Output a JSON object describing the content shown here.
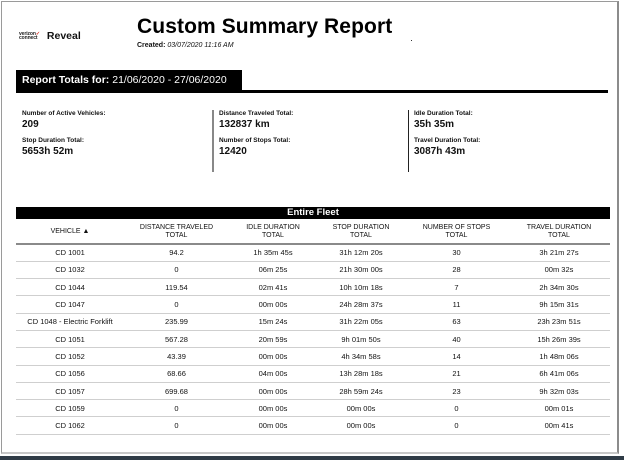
{
  "logo": {
    "brand_line1": "verizon",
    "brand_line2": "connect",
    "product": "Reveal"
  },
  "report": {
    "title": "Custom Summary Report",
    "created_label": "Created:",
    "created_value": "03/07/2020 11:16 AM"
  },
  "totals": {
    "header_label": "Report Totals for:",
    "date_range": "21/06/2020 - 27/06/2020",
    "stats": [
      {
        "label": "Number of Active Vehicles:",
        "value": "209"
      },
      {
        "label": "Stop Duration Total:",
        "value": "5653h 52m"
      },
      {
        "label": "Distance Traveled Total:",
        "value": "132837 km"
      },
      {
        "label": "Number of Stops Total:",
        "value": "12420"
      },
      {
        "label": "Idle Duration Total:",
        "value": "35h 35m"
      },
      {
        "label": "Travel Duration Total:",
        "value": "3087h 43m"
      }
    ]
  },
  "fleet": {
    "title": "Entire Fleet",
    "columns": [
      {
        "line1": "VEHICLE",
        "sort": "▲"
      },
      {
        "line1": "DISTANCE TRAVELED",
        "line2": "TOTAL"
      },
      {
        "line1": "IDLE DURATION",
        "line2": "TOTAL"
      },
      {
        "line1": "STOP DURATION",
        "line2": "TOTAL"
      },
      {
        "line1": "NUMBER OF STOPS",
        "line2": "TOTAL"
      },
      {
        "line1": "TRAVEL DURATION",
        "line2": "TOTAL"
      }
    ],
    "rows": [
      [
        "CD 1001",
        "94.2",
        "1h 35m 45s",
        "31h 12m 20s",
        "30",
        "3h 21m 27s"
      ],
      [
        "CD 1032",
        "0",
        "06m 25s",
        "21h 30m 00s",
        "28",
        "00m 32s"
      ],
      [
        "CD 1044",
        "119.54",
        "02m 41s",
        "10h 10m 18s",
        "7",
        "2h 34m 30s"
      ],
      [
        "CD 1047",
        "0",
        "00m 00s",
        "24h 28m 37s",
        "11",
        "9h 15m 31s"
      ],
      [
        "CD 1048 - Electric Forklift",
        "235.99",
        "15m 24s",
        "31h 22m 05s",
        "63",
        "23h 23m 51s"
      ],
      [
        "CD 1051",
        "567.28",
        "20m 59s",
        "9h 01m 50s",
        "40",
        "15h 26m 39s"
      ],
      [
        "CD 1052",
        "43.39",
        "00m 00s",
        "4h 34m 58s",
        "14",
        "1h 48m 06s"
      ],
      [
        "CD 1056",
        "68.66",
        "04m 00s",
        "13h 28m 18s",
        "21",
        "6h 41m 06s"
      ],
      [
        "CD 1057",
        "699.68",
        "00m 00s",
        "28h 59m 24s",
        "23",
        "9h 32m 03s"
      ],
      [
        "CD 1059",
        "0",
        "00m 00s",
        "00m 00s",
        "0",
        "00m 01s"
      ],
      [
        "CD 1062",
        "0",
        "00m 00s",
        "00m 00s",
        "0",
        "00m 41s"
      ]
    ]
  }
}
